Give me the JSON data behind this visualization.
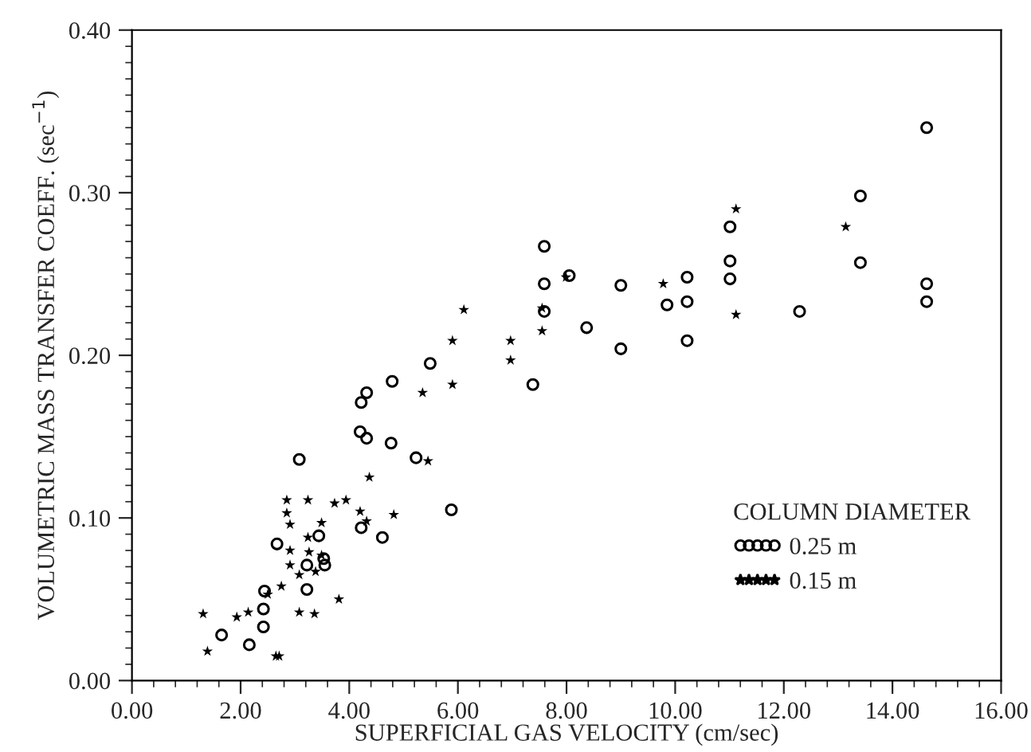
{
  "chart_data": {
    "type": "scatter",
    "xlabel": "SUPERFICIAL GAS VELOCITY (cm/sec)",
    "ylabel": "VOLUMETRIC MASS TRANSFER COEFF. (sec$^{−1}$)",
    "legend_title": "COLUMN DIAMETER",
    "legend": "bottom right",
    "grid": false,
    "xlim": [
      0,
      16
    ],
    "ylim": [
      0,
      0.4
    ],
    "xticks": [
      {
        "value": 0,
        "label": "0.00"
      },
      {
        "value": 2,
        "label": "2.00"
      },
      {
        "value": 4,
        "label": "4.00"
      },
      {
        "value": 6,
        "label": "6.00"
      },
      {
        "value": 8,
        "label": "8.00"
      },
      {
        "value": 10,
        "label": "10.00"
      },
      {
        "value": 12,
        "label": "12.00"
      },
      {
        "value": 14,
        "label": "14.00"
      },
      {
        "value": 16,
        "label": "16.00"
      }
    ],
    "yticks": [
      {
        "value": 0,
        "label": "0.00"
      },
      {
        "value": 0.1,
        "label": "0.10"
      },
      {
        "value": 0.2,
        "label": "0.20"
      },
      {
        "value": 0.3,
        "label": "0.30"
      },
      {
        "value": 0.4,
        "label": "0.40"
      }
    ],
    "series": [
      {
        "name": "0.25 m",
        "color": "#000000",
        "marker": "circle",
        "x": [
          1.65,
          2.16,
          2.42,
          2.42,
          2.44,
          2.67,
          3.22,
          3.22,
          3.44,
          3.53,
          3.55,
          3.08,
          4.22,
          4.61,
          4.2,
          4.32,
          4.22,
          4.32,
          4.77,
          5.23,
          7.59,
          8.05,
          7.59,
          7.59,
          8.37,
          5.49,
          4.79,
          7.38,
          5.88,
          14.63,
          13.41,
          11.01,
          11.01,
          11.01,
          13.41,
          14.63,
          14.63,
          10.22,
          10.22,
          10.22,
          9.85,
          9.0,
          9.0,
          12.29
        ],
        "values": [
          0.028,
          0.022,
          0.033,
          0.044,
          0.055,
          0.084,
          0.071,
          0.056,
          0.089,
          0.075,
          0.071,
          0.136,
          0.094,
          0.088,
          0.153,
          0.149,
          0.171,
          0.177,
          0.146,
          0.137,
          0.267,
          0.249,
          0.244,
          0.227,
          0.217,
          0.195,
          0.184,
          0.182,
          0.105,
          0.34,
          0.298,
          0.279,
          0.258,
          0.247,
          0.257,
          0.244,
          0.233,
          0.248,
          0.233,
          0.209,
          0.231,
          0.243,
          0.204,
          0.227
        ]
      },
      {
        "name": "0.15 m",
        "color": "#000000",
        "marker": "star",
        "x": [
          1.31,
          1.39,
          1.93,
          2.14,
          2.5,
          2.65,
          2.71,
          2.75,
          2.85,
          2.85,
          2.91,
          2.91,
          2.91,
          3.08,
          3.08,
          3.24,
          3.24,
          3.26,
          3.38,
          3.36,
          3.49,
          3.49,
          3.73,
          3.94,
          3.81,
          4.2,
          4.32,
          4.37,
          4.82,
          5.45,
          5.35,
          7.99,
          6.11,
          5.9,
          6.97,
          6.97,
          7.55,
          7.55,
          5.9,
          11.12,
          11.12,
          13.14,
          9.78
        ],
        "values": [
          0.041,
          0.018,
          0.039,
          0.042,
          0.053,
          0.015,
          0.015,
          0.058,
          0.111,
          0.103,
          0.096,
          0.08,
          0.071,
          0.065,
          0.042,
          0.111,
          0.088,
          0.079,
          0.067,
          0.041,
          0.097,
          0.077,
          0.109,
          0.111,
          0.05,
          0.104,
          0.098,
          0.125,
          0.102,
          0.135,
          0.177,
          0.248,
          0.228,
          0.209,
          0.209,
          0.197,
          0.229,
          0.215,
          0.182,
          0.29,
          0.225,
          0.279,
          0.244
        ]
      }
    ]
  }
}
